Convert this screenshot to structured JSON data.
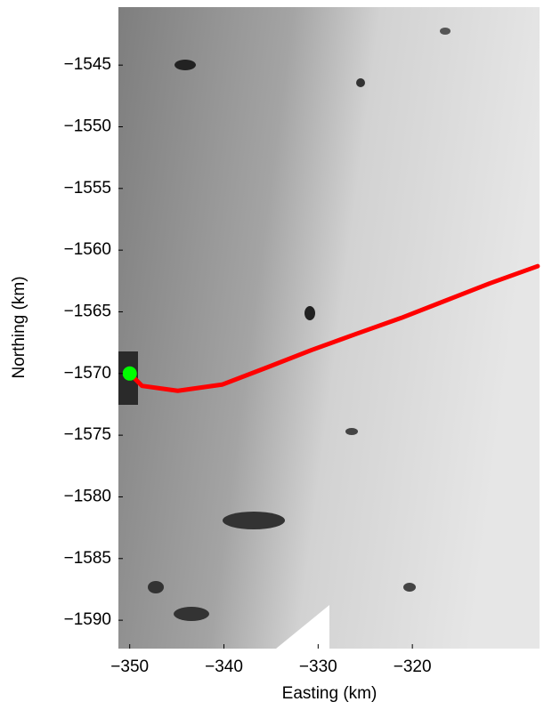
{
  "chart_data": {
    "type": "line",
    "xlabel": "Easting (km)",
    "ylabel": "Northing (km)",
    "xlim": [
      -351.2,
      -306.5
    ],
    "ylim": [
      -1592.3,
      -1540.3
    ],
    "xticks": [
      {
        "value": -350,
        "label": "−350"
      },
      {
        "value": -340,
        "label": "−340"
      },
      {
        "value": -330,
        "label": "−330"
      },
      {
        "value": -320,
        "label": "−320"
      }
    ],
    "yticks": [
      {
        "value": -1545,
        "label": "−1545"
      },
      {
        "value": -1550,
        "label": "−1550"
      },
      {
        "value": -1555,
        "label": "−1555"
      },
      {
        "value": -1560,
        "label": "−1560"
      },
      {
        "value": -1565,
        "label": "−1565"
      },
      {
        "value": -1570,
        "label": "−1570"
      },
      {
        "value": -1575,
        "label": "−1575"
      },
      {
        "value": -1580,
        "label": "−1580"
      },
      {
        "value": -1585,
        "label": "−1585"
      },
      {
        "value": -1590,
        "label": "−1590"
      }
    ],
    "series": [
      {
        "color": "#ff0000",
        "style": "line",
        "x": [
          -350.0,
          -348.7,
          -344.9,
          -340.2,
          -335.4,
          -330.7,
          -326.0,
          -321.2,
          -316.5,
          -311.8,
          -306.7
        ],
        "values": [
          -1570.0,
          -1571.0,
          -1571.4,
          -1570.9,
          -1569.5,
          -1568.1,
          -1566.8,
          -1565.5,
          -1564.1,
          -1562.7,
          -1561.3
        ]
      },
      {
        "color": "#00ff00",
        "style": "point",
        "x": [
          -350.0
        ],
        "values": [
          -1570.0
        ]
      }
    ]
  }
}
